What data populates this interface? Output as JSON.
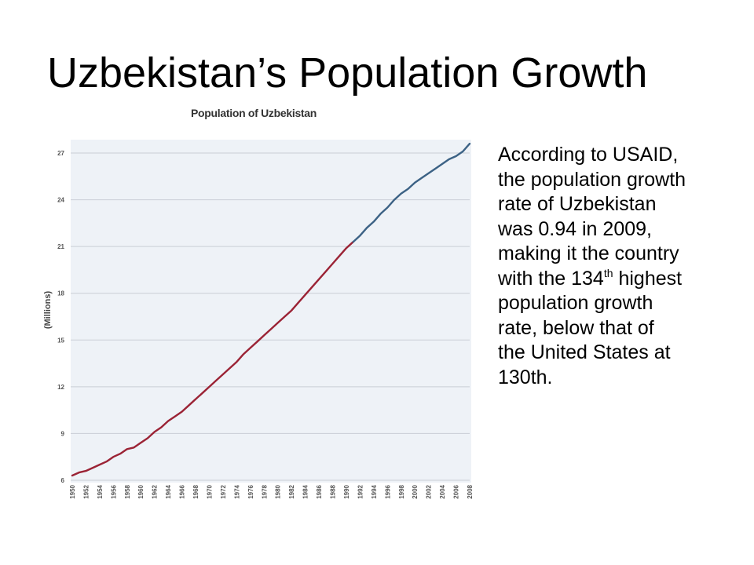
{
  "slide": {
    "title": "Uzbekistan’s Population Growth",
    "text": {
      "before": "According to USAID, the population growth rate of Uzbekistan was 0.94 in 2009, making it the country with the 134",
      "superscript": "th",
      "after": " highest population growth rate, below that of the United States at 130th."
    }
  },
  "chart_data": {
    "type": "line",
    "title": "Population of Uzbekistan",
    "ylabel": "(Millions)",
    "xlabel": "",
    "xlim": [
      1950,
      2008
    ],
    "ylim": [
      6,
      27
    ],
    "y_ticks": [
      6,
      9,
      12,
      15,
      18,
      21,
      24,
      27
    ],
    "x_ticks": [
      "1950",
      "1952",
      "1954",
      "1956",
      "1958",
      "1960",
      "1962",
      "1964",
      "1966",
      "1968",
      "1970",
      "1972",
      "1974",
      "1976",
      "1978",
      "1980",
      "1982",
      "1984",
      "1986",
      "1988",
      "1990",
      "1992",
      "1994",
      "1996",
      "1998",
      "2000",
      "2002",
      "2004",
      "2006",
      "2008"
    ],
    "grid": true,
    "legend": "none",
    "series": [
      {
        "color": "#9b2335",
        "x": [
          1950,
          1951,
          1952,
          1953,
          1954,
          1955,
          1956,
          1957,
          1958,
          1959,
          1960,
          1961,
          1962,
          1963,
          1964,
          1965,
          1966,
          1967,
          1968,
          1969,
          1970,
          1971,
          1972,
          1973,
          1974,
          1975,
          1976,
          1977,
          1978,
          1979,
          1980,
          1981,
          1982,
          1983,
          1984,
          1985,
          1986,
          1987,
          1988,
          1989,
          1990,
          1991
        ],
        "y": [
          6.3,
          6.5,
          6.6,
          6.8,
          7.0,
          7.2,
          7.5,
          7.7,
          8.0,
          8.1,
          8.4,
          8.7,
          9.1,
          9.4,
          9.8,
          10.1,
          10.4,
          10.8,
          11.2,
          11.6,
          12.0,
          12.4,
          12.8,
          13.2,
          13.6,
          14.1,
          14.5,
          14.9,
          15.3,
          15.7,
          16.1,
          16.5,
          16.9,
          17.4,
          17.9,
          18.4,
          18.9,
          19.4,
          19.9,
          20.4,
          20.9,
          21.3
        ]
      },
      {
        "color": "#3c6285",
        "x": [
          1991,
          1992,
          1993,
          1994,
          1995,
          1996,
          1997,
          1998,
          1999,
          2000,
          2001,
          2002,
          2003,
          2004,
          2005,
          2006,
          2007,
          2008
        ],
        "y": [
          21.3,
          21.7,
          22.2,
          22.6,
          23.1,
          23.5,
          24.0,
          24.4,
          24.7,
          25.1,
          25.4,
          25.7,
          26.0,
          26.3,
          26.6,
          26.8,
          27.1,
          27.6
        ]
      }
    ]
  }
}
